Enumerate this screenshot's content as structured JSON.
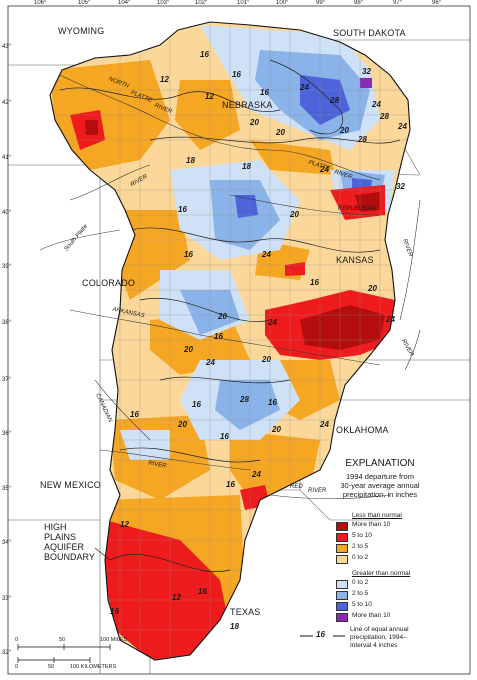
{
  "states": [
    "WYOMING",
    "SOUTH DAKOTA",
    "NEBRASKA",
    "KANSAS",
    "COLORADO",
    "OKLAHOMA",
    "NEW MEXICO",
    "TEXAS"
  ],
  "longitudes": [
    "106°",
    "105°",
    "104°",
    "103°",
    "102°",
    "101°",
    "100°",
    "99°",
    "98°",
    "97°",
    "96°"
  ],
  "latitudes": [
    "43°",
    "42°",
    "41°",
    "40°",
    "39°",
    "38°",
    "37°",
    "36°",
    "35°",
    "34°",
    "33°",
    "32°"
  ],
  "rivers": [
    "NORTH",
    "PLATTE",
    "RIVER",
    "PLATTE",
    "RIVER",
    "RIVER",
    "REPUBLICAN",
    "RIVER",
    "South Platte",
    "ARKANSAS",
    "RIVER",
    "CANADIAN",
    "RIVER",
    "RED",
    "RIVER"
  ],
  "contour_labels": [
    "16",
    "12",
    "12",
    "16",
    "16",
    "20",
    "20",
    "24",
    "28",
    "32",
    "24",
    "28",
    "20",
    "24",
    "28",
    "18",
    "18",
    "24",
    "32",
    "20",
    "16",
    "16",
    "24",
    "20",
    "16",
    "20",
    "24",
    "24",
    "20",
    "16",
    "20",
    "24",
    "28",
    "16",
    "16",
    "20",
    "16",
    "20",
    "16",
    "24",
    "24",
    "16",
    "12",
    "16",
    "12",
    "16",
    "18"
  ],
  "aquifer_label": [
    "HIGH",
    "PLAINS",
    "AQUIFER",
    "BOUNDARY"
  ],
  "legend": {
    "title": "EXPLANATION",
    "subtitle": [
      "1994 departure from",
      "30-year average annual",
      "precipitation, in inches"
    ],
    "less_header": "Less than normal",
    "less": [
      {
        "label": "More than 10",
        "color": "#b30d0d"
      },
      {
        "label": "5 to 10",
        "color": "#ee1c1c"
      },
      {
        "label": "2 to 5",
        "color": "#f5a623"
      },
      {
        "label": "0 to 2",
        "color": "#fbd89a"
      }
    ],
    "greater_header": "Greater than normal",
    "greater": [
      {
        "label": "0 to 2",
        "color": "#cfe1f7"
      },
      {
        "label": "2 to 5",
        "color": "#8ab3ea"
      },
      {
        "label": "5 to 10",
        "color": "#4d63d9"
      },
      {
        "label": "More than 10",
        "color": "#8a2bb8"
      }
    ],
    "contour_value": "16",
    "contour_text": [
      "Line of equal annual",
      "precipitation, 1994--",
      "Interval 4 inches"
    ]
  },
  "scale": {
    "miles": [
      "0",
      "50",
      "100 MILES"
    ],
    "km": [
      "0",
      "50",
      "100 KILOMETERS"
    ]
  }
}
